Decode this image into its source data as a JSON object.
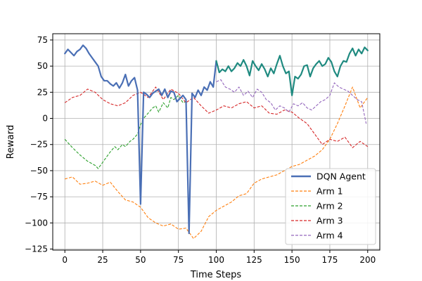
{
  "chart_data": {
    "type": "line",
    "title": "",
    "xlabel": "Time Steps",
    "ylabel": "Reward",
    "xlim": [
      -8,
      208
    ],
    "ylim": [
      -126,
      81
    ],
    "xticks": [
      0,
      25,
      50,
      75,
      100,
      125,
      150,
      175,
      200
    ],
    "yticks": [
      -125,
      -100,
      -75,
      -50,
      -25,
      0,
      25,
      50,
      75
    ],
    "grid": true,
    "legend": {
      "position": "bottom-right"
    },
    "series": [
      {
        "name": "DQN Agent",
        "style": "solid",
        "colors": [
          "#4a6fb5",
          "#1f8a80"
        ],
        "x": [
          0,
          2,
          4,
          6,
          8,
          10,
          12,
          14,
          16,
          18,
          20,
          22,
          24,
          26,
          28,
          30,
          32,
          34,
          36,
          38,
          40,
          42,
          44,
          46,
          48,
          50,
          52,
          54,
          56,
          58,
          60,
          62,
          64,
          66,
          68,
          70,
          72,
          74,
          76,
          78,
          80,
          82,
          84,
          86,
          88,
          90,
          92,
          94,
          96,
          98,
          100,
          102,
          104,
          106,
          108,
          110,
          112,
          114,
          116,
          118,
          120,
          122,
          124,
          126,
          128,
          130,
          132,
          134,
          136,
          138,
          140,
          142,
          144,
          146,
          148,
          150,
          152,
          154,
          156,
          158,
          160,
          162,
          164,
          166,
          168,
          170,
          172,
          174,
          176,
          178,
          180,
          182,
          184,
          186,
          188,
          190,
          192,
          194,
          196,
          198,
          200
        ],
        "values": [
          62,
          66,
          63,
          60,
          64,
          66,
          70,
          67,
          62,
          58,
          54,
          50,
          40,
          36,
          36,
          33,
          31,
          34,
          29,
          34,
          42,
          31,
          36,
          39,
          27,
          -82,
          25,
          23,
          20,
          24,
          26,
          28,
          22,
          28,
          20,
          26,
          25,
          16,
          19,
          22,
          18,
          -110,
          24,
          20,
          27,
          22,
          30,
          27,
          35,
          30,
          55,
          44,
          47,
          45,
          50,
          45,
          48,
          53,
          50,
          56,
          50,
          41,
          55,
          50,
          46,
          52,
          47,
          40,
          48,
          43,
          52,
          60,
          50,
          43,
          45,
          22,
          40,
          38,
          42,
          50,
          51,
          40,
          48,
          52,
          55,
          50,
          52,
          58,
          54,
          45,
          40,
          50,
          55,
          54,
          62,
          67,
          60,
          66,
          62,
          68,
          65
        ]
      },
      {
        "name": "Arm 1",
        "style": "dashed",
        "color": "#ff7f0e",
        "x": [
          0,
          5,
          10,
          15,
          20,
          25,
          30,
          35,
          40,
          45,
          50,
          55,
          60,
          65,
          70,
          75,
          80,
          85,
          90,
          95,
          100,
          105,
          110,
          115,
          120,
          125,
          130,
          135,
          140,
          145,
          150,
          155,
          160,
          165,
          170,
          175,
          180,
          185,
          190,
          195,
          200
        ],
        "values": [
          -58,
          -56,
          -63,
          -62,
          -60,
          -64,
          -61,
          -70,
          -78,
          -80,
          -85,
          -95,
          -100,
          -103,
          -101,
          -106,
          -105,
          -115,
          -108,
          -94,
          -88,
          -84,
          -80,
          -74,
          -72,
          -62,
          -58,
          -56,
          -54,
          -50,
          -46,
          -44,
          -40,
          -36,
          -30,
          -20,
          -5,
          12,
          30,
          10,
          20
        ]
      },
      {
        "name": "Arm 2",
        "style": "dashed",
        "color": "#2ca02c",
        "x": [
          0,
          5,
          10,
          15,
          20,
          22,
          25,
          28,
          30,
          33,
          35,
          38,
          40,
          43,
          45,
          48,
          50,
          52,
          55,
          58,
          60,
          62,
          65,
          68,
          70,
          72,
          75,
          78,
          80
        ],
        "values": [
          -20,
          -28,
          -35,
          -41,
          -45,
          -48,
          -42,
          -36,
          -32,
          -27,
          -30,
          -25,
          -27,
          -22,
          -20,
          -15,
          -6,
          0,
          5,
          10,
          12,
          6,
          15,
          10,
          20,
          18,
          22,
          15,
          16
        ]
      },
      {
        "name": "Arm 3",
        "style": "dashed",
        "color": "#d62728",
        "x": [
          0,
          5,
          10,
          15,
          20,
          25,
          30,
          35,
          40,
          45,
          50,
          55,
          60,
          65,
          70,
          75,
          80,
          85,
          90,
          95,
          100,
          105,
          110,
          115,
          120,
          125,
          130,
          135,
          140,
          145,
          150,
          155,
          160,
          165,
          170,
          175,
          180,
          185,
          190,
          195,
          200
        ],
        "values": [
          15,
          20,
          22,
          28,
          25,
          18,
          14,
          12,
          15,
          22,
          25,
          20,
          30,
          18,
          28,
          24,
          15,
          20,
          12,
          5,
          8,
          12,
          10,
          14,
          16,
          10,
          12,
          5,
          4,
          8,
          6,
          0,
          -5,
          -15,
          -25,
          -20,
          -22,
          -18,
          -28,
          -22,
          -27
        ]
      },
      {
        "name": "Arm 4",
        "style": "dashed",
        "color": "#9467bd",
        "x": [
          100,
          103,
          106,
          109,
          112,
          115,
          118,
          121,
          124,
          127,
          130,
          133,
          136,
          139,
          142,
          145,
          148,
          151,
          154,
          157,
          160,
          163,
          166,
          169,
          172,
          175,
          178,
          181,
          184,
          187,
          190,
          193,
          196,
          199
        ],
        "values": [
          35,
          37,
          30,
          28,
          25,
          30,
          22,
          26,
          20,
          28,
          25,
          18,
          15,
          8,
          12,
          10,
          6,
          14,
          12,
          15,
          10,
          8,
          12,
          16,
          18,
          22,
          34,
          30,
          28,
          26,
          22,
          18,
          16,
          -5
        ]
      }
    ]
  }
}
